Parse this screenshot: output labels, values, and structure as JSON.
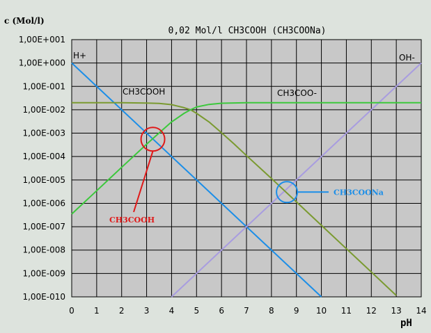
{
  "chart_data": {
    "type": "line",
    "title": "0,02 Mol/l CH3COOH (CH3COONa)",
    "ylabel": "c (Mol/l)",
    "xlabel": "pH",
    "scale": "log-y",
    "grid": true,
    "xlim": [
      0,
      14
    ],
    "ylim": [
      -10,
      1
    ],
    "x_ticks": [
      "0",
      "1",
      "2",
      "3",
      "4",
      "5",
      "6",
      "7",
      "8",
      "9",
      "10",
      "11",
      "12",
      "13",
      "14"
    ],
    "y_ticks": [
      "1,00E+001",
      "1,00E+000",
      "1,00E-001",
      "1,00E-002",
      "1,00E-003",
      "1,00E-004",
      "1,00E-005",
      "1,00E-006",
      "1,00E-007",
      "1,00E-008",
      "1,00E-009",
      "1,00E-010"
    ],
    "series": [
      {
        "name": "H+",
        "color": "#1b8ee8",
        "x": [
          0,
          10
        ],
        "log10_c": [
          0,
          -10
        ]
      },
      {
        "name": "OH-",
        "color": "#a89ce0",
        "x": [
          4,
          14
        ],
        "log10_c": [
          -10,
          0
        ]
      },
      {
        "name": "CH3COOH",
        "color": "#7a9a30",
        "x": [
          0,
          1,
          2,
          3,
          3.5,
          4,
          4.5,
          4.76,
          5,
          5.5,
          6,
          6.5,
          7,
          8,
          9,
          10,
          11,
          12,
          13
        ],
        "log10_c": [
          -1.7,
          -1.7,
          -1.7,
          -1.71,
          -1.73,
          -1.78,
          -1.91,
          -2.0,
          -2.15,
          -2.52,
          -2.98,
          -3.46,
          -3.96,
          -4.94,
          -5.94,
          -6.94,
          -7.94,
          -8.94,
          -9.94
        ]
      },
      {
        "name": "CH3COO-",
        "color": "#3cc83c",
        "x": [
          0,
          1,
          2,
          3,
          3.5,
          4,
          4.5,
          4.76,
          5,
          5.5,
          6,
          7,
          8,
          10,
          12,
          14
        ],
        "log10_c": [
          -6.46,
          -5.46,
          -4.46,
          -3.47,
          -2.99,
          -2.52,
          -2.15,
          -2.0,
          -1.88,
          -1.77,
          -1.72,
          -1.7,
          -1.7,
          -1.7,
          -1.7,
          -1.7
        ]
      }
    ],
    "annotations": [
      {
        "text": "CH3COOH",
        "color": "#e01818",
        "x": 3.25,
        "log10_c": -3.26
      },
      {
        "text": "CH3COONa",
        "color": "#1b8ee8",
        "x": 8.62,
        "log10_c": -5.52
      }
    ],
    "series_labels": {
      "H+": "H+",
      "OH-": "OH-",
      "CH3COOH": "CH3COOH",
      "CH3COO-": "CH3COO-"
    }
  }
}
